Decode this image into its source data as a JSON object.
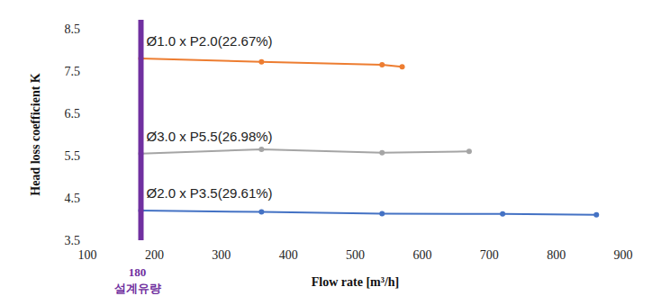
{
  "chart_data": {
    "type": "line",
    "x_label": "Flow rate [m³/h]",
    "y_label": "Head loss coefficient K",
    "xlim": [
      100,
      900
    ],
    "xticks": [
      100,
      200,
      300,
      400,
      500,
      600,
      700,
      800,
      900
    ],
    "ylim": [
      3.5,
      8.5
    ],
    "yticks": [
      3.5,
      4.5,
      5.5,
      6.5,
      7.5,
      8.5
    ],
    "grid": false,
    "reference_line": {
      "x": 180,
      "label": "180",
      "text": "설계유량",
      "color": "#7030a0"
    },
    "series": [
      {
        "name": "Ø1.0 x P2.0(22.67%)",
        "color": "#ed7d31",
        "marker": "circle",
        "x": [
          180,
          360,
          540,
          570
        ],
        "values": [
          7.8,
          7.72,
          7.65,
          7.6
        ]
      },
      {
        "name": "Ø3.0 x P5.5(26.98%)",
        "color": "#a5a5a5",
        "marker": "circle",
        "x": [
          180,
          360,
          540,
          670
        ],
        "values": [
          5.55,
          5.65,
          5.57,
          5.6
        ]
      },
      {
        "name": "Ø2.0 x P3.5(29.61%)",
        "color": "#4472c4",
        "marker": "circle",
        "x": [
          180,
          360,
          540,
          720,
          860
        ],
        "values": [
          4.2,
          4.17,
          4.13,
          4.12,
          4.1
        ]
      }
    ]
  }
}
